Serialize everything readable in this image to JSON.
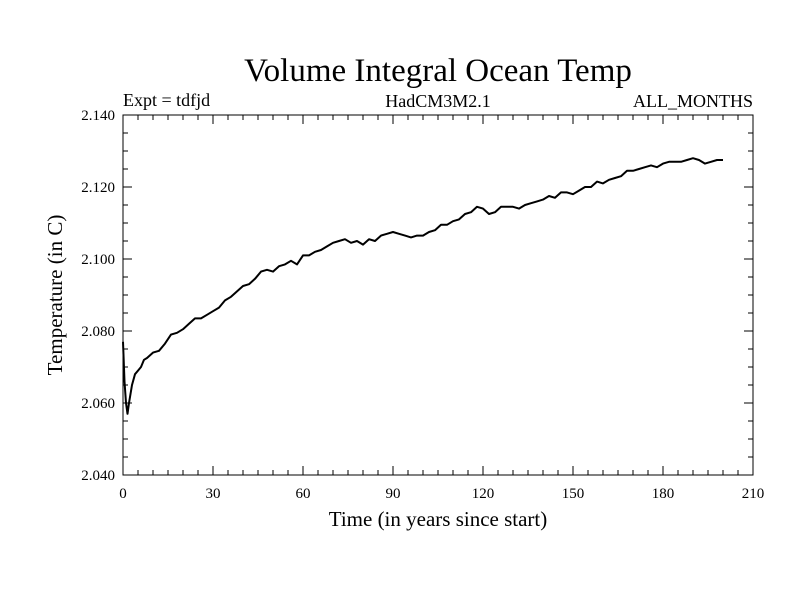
{
  "chart_data": {
    "type": "line",
    "title": "Volume Integral Ocean Temp",
    "subtitle_left": "Expt = tdfjd",
    "subtitle_center": "HadCM3M2.1",
    "subtitle_right": "ALL_MONTHS",
    "xlabel": "Time (in years since start)",
    "ylabel": "Temperature (in C)",
    "xlim": [
      0,
      210
    ],
    "ylim": [
      2.04,
      2.14
    ],
    "xticks": [
      0,
      30,
      60,
      90,
      120,
      150,
      180,
      210
    ],
    "xtick_labels": [
      "0",
      "30",
      "60",
      "90",
      "120",
      "150",
      "180",
      "210"
    ],
    "yticks": [
      2.04,
      2.06,
      2.08,
      2.1,
      2.12,
      2.14
    ],
    "ytick_labels": [
      "2.040",
      "2.060",
      "2.080",
      "2.100",
      "2.120",
      "2.140"
    ],
    "grid": false,
    "series": [
      {
        "name": "tdfjd",
        "x": [
          0,
          0.5,
          1,
          1.5,
          2,
          3,
          4,
          5,
          6,
          7,
          8,
          10,
          12,
          14,
          16,
          18,
          20,
          22,
          24,
          26,
          28,
          30,
          32,
          34,
          36,
          38,
          40,
          42,
          44,
          46,
          48,
          50,
          52,
          54,
          56,
          58,
          60,
          62,
          64,
          66,
          68,
          70,
          72,
          74,
          76,
          78,
          80,
          82,
          84,
          86,
          88,
          90,
          92,
          94,
          96,
          98,
          100,
          102,
          104,
          106,
          108,
          110,
          112,
          114,
          116,
          118,
          120,
          122,
          124,
          126,
          128,
          130,
          132,
          134,
          136,
          138,
          140,
          142,
          144,
          146,
          148,
          150,
          152,
          154,
          156,
          158,
          160,
          162,
          164,
          166,
          168,
          170,
          172,
          174,
          176,
          178,
          180,
          182,
          184,
          186,
          188,
          190,
          192,
          194,
          196,
          198,
          200
        ],
        "values": [
          2.077,
          2.066,
          2.06,
          2.057,
          2.06,
          2.065,
          2.068,
          2.069,
          2.07,
          2.072,
          2.0725,
          2.074,
          2.0745,
          2.0765,
          2.079,
          2.0795,
          2.0805,
          2.082,
          2.0835,
          2.0835,
          2.0845,
          2.0855,
          2.0865,
          2.0885,
          2.0895,
          2.091,
          2.0925,
          2.093,
          2.0945,
          2.0965,
          2.097,
          2.0965,
          2.098,
          2.0985,
          2.0995,
          2.0985,
          2.101,
          2.101,
          2.102,
          2.1025,
          2.1035,
          2.1045,
          2.105,
          2.1055,
          2.1045,
          2.105,
          2.104,
          2.1055,
          2.105,
          2.1065,
          2.107,
          2.1075,
          2.107,
          2.1065,
          2.106,
          2.1065,
          2.1065,
          2.1075,
          2.108,
          2.1095,
          2.1095,
          2.1105,
          2.111,
          2.1125,
          2.113,
          2.1145,
          2.114,
          2.1125,
          2.113,
          2.1145,
          2.1145,
          2.1145,
          2.114,
          2.115,
          2.1155,
          2.116,
          2.1165,
          2.1175,
          2.117,
          2.1185,
          2.1185,
          2.118,
          2.119,
          2.12,
          2.12,
          2.1215,
          2.121,
          2.122,
          2.1225,
          2.123,
          2.1245,
          2.1245,
          2.125,
          2.1255,
          2.126,
          2.1255,
          2.1265,
          2.127,
          2.127,
          2.127,
          2.1275,
          2.128,
          2.1275,
          2.1265,
          2.127,
          2.1275,
          2.1275
        ]
      }
    ]
  }
}
